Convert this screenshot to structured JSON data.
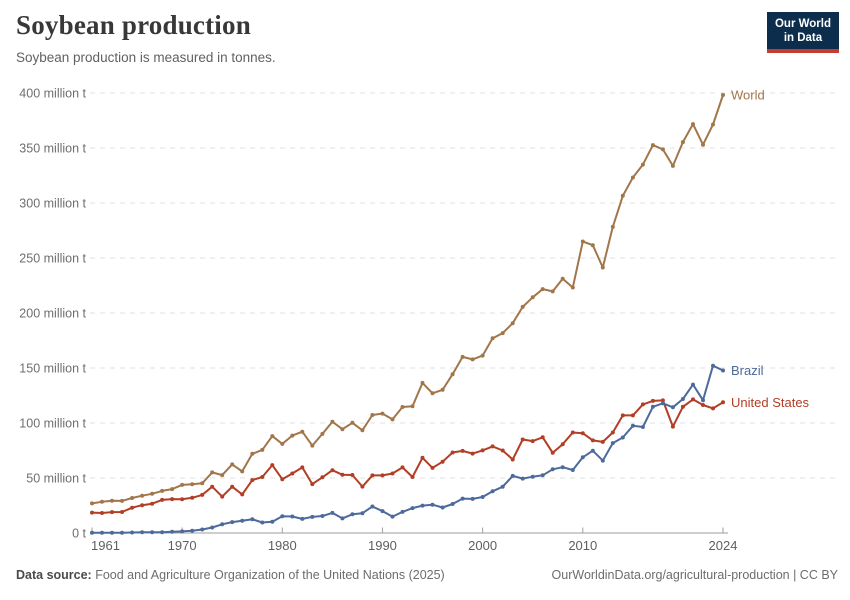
{
  "header": {
    "title": "Soybean production",
    "subtitle": "Soybean production is measured in tonnes."
  },
  "logo": {
    "line1": "Our World",
    "line2": "in Data",
    "bg_color": "#0d2d4d",
    "accent_color": "#c33d33"
  },
  "footer": {
    "source_label": "Data source:",
    "source_text": " Food and Agriculture Organization of the United Nations (2025)",
    "link_text": "OurWorldinData.org/agricultural-production | CC BY"
  },
  "chart_data": {
    "type": "line",
    "title": "Soybean production",
    "ylabel": "",
    "xlabel": "",
    "unit": "tonnes (millions)",
    "grid": "horizontal-dashed",
    "legend_position": "end-of-line-labels",
    "xlim": [
      1961,
      2024
    ],
    "ylim": [
      0,
      400
    ],
    "x_ticks": [
      1961,
      1970,
      1980,
      1990,
      2000,
      2010,
      2024
    ],
    "y_ticks": [
      0,
      50,
      100,
      150,
      200,
      250,
      300,
      350,
      400
    ],
    "y_tick_labels": [
      "0 t",
      "50 million t",
      "100 million t",
      "150 million t",
      "200 million t",
      "250 million t",
      "300 million t",
      "350 million t",
      "400 million t"
    ],
    "x": [
      1961,
      1962,
      1963,
      1964,
      1965,
      1966,
      1967,
      1968,
      1969,
      1970,
      1971,
      1972,
      1973,
      1974,
      1975,
      1976,
      1977,
      1978,
      1979,
      1980,
      1981,
      1982,
      1983,
      1984,
      1985,
      1986,
      1987,
      1988,
      1989,
      1990,
      1991,
      1992,
      1993,
      1994,
      1995,
      1996,
      1997,
      1998,
      1999,
      2000,
      2001,
      2002,
      2003,
      2004,
      2005,
      2006,
      2007,
      2008,
      2009,
      2010,
      2011,
      2012,
      2013,
      2014,
      2015,
      2016,
      2017,
      2018,
      2019,
      2020,
      2021,
      2022,
      2023,
      2024
    ],
    "series": [
      {
        "name": "World",
        "color": "#a1764a",
        "values": [
          26.9,
          28.4,
          29.4,
          29.2,
          31.8,
          33.9,
          35.6,
          38.3,
          39.9,
          43.7,
          44.4,
          45.2,
          55.1,
          52.6,
          62.4,
          56.0,
          72.0,
          75.5,
          88.1,
          81.0,
          88.5,
          92.1,
          79.5,
          90.1,
          101.2,
          94.4,
          100.2,
          93.4,
          107.3,
          108.5,
          103.3,
          114.5,
          115.2,
          136.5,
          127.0,
          130.2,
          144.4,
          160.1,
          157.8,
          161.3,
          177.0,
          181.7,
          190.7,
          205.5,
          214.3,
          221.7,
          219.6,
          231.2,
          223.2,
          265.0,
          261.6,
          241.4,
          278.3,
          306.5,
          323.2,
          334.9,
          352.6,
          348.7,
          333.7,
          355.4,
          371.7,
          353.0,
          371.4,
          398.2
        ]
      },
      {
        "name": "Brazil",
        "color": "#4c6a9c",
        "values": [
          0.3,
          0.3,
          0.3,
          0.3,
          0.5,
          0.6,
          0.7,
          0.7,
          1.1,
          1.5,
          2.1,
          3.2,
          5.0,
          7.9,
          9.9,
          11.2,
          12.5,
          9.5,
          10.2,
          15.2,
          15.0,
          12.8,
          14.6,
          15.5,
          18.3,
          13.3,
          17.0,
          18.0,
          24.1,
          19.9,
          14.9,
          19.2,
          22.6,
          24.9,
          25.7,
          23.2,
          26.4,
          31.3,
          31.0,
          32.7,
          37.9,
          42.1,
          51.9,
          49.5,
          51.2,
          52.5,
          57.9,
          59.8,
          57.3,
          68.8,
          74.8,
          65.8,
          81.7,
          86.8,
          97.5,
          96.4,
          114.7,
          117.9,
          114.3,
          121.8,
          134.9,
          120.7,
          152.1,
          147.7
        ]
      },
      {
        "name": "United States",
        "color": "#b23e25",
        "values": [
          18.5,
          18.2,
          19.0,
          19.1,
          23.0,
          25.3,
          26.6,
          30.1,
          30.8,
          30.7,
          32.0,
          34.6,
          42.1,
          33.1,
          42.1,
          35.1,
          48.1,
          50.9,
          61.7,
          48.9,
          54.1,
          59.6,
          44.5,
          50.6,
          57.1,
          52.9,
          52.7,
          42.2,
          52.4,
          52.4,
          54.1,
          59.6,
          50.9,
          68.4,
          59.2,
          64.8,
          73.2,
          74.6,
          72.2,
          75.1,
          78.7,
          75.0,
          66.8,
          85.0,
          83.5,
          87.0,
          72.9,
          80.7,
          91.4,
          90.7,
          84.2,
          82.8,
          91.4,
          106.9,
          106.9,
          116.9,
          120.1,
          120.5,
          96.7,
          114.7,
          121.5,
          116.4,
          113.3,
          118.8
        ]
      }
    ]
  }
}
